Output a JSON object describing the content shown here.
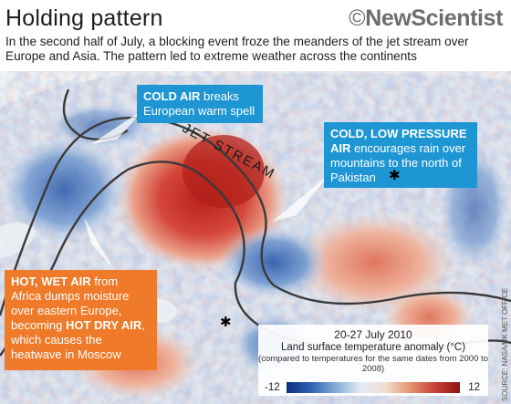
{
  "header": {
    "title": "Holding pattern",
    "logo": "NewScientist",
    "logo_symbol": "©",
    "subtitle": "In the second half of July, a blocking event froze the meanders of the jet stream over Europe and Asia. The pattern led to extreme weather across the continents"
  },
  "annotations": {
    "cold_air_bold": "COLD AIR",
    "cold_air_text": " breaks European warm spell",
    "low_pressure_bold": "COLD, LOW PRESSURE AIR",
    "low_pressure_text": " encourages rain over mountains to the north of Pakistan",
    "hot_wet_bold": "HOT, WET AIR",
    "hot_wet_text1": " from Africa dumps moisture over eastern Europe, becoming ",
    "hot_dry_bold": "HOT DRY AIR",
    "hot_dry_text": ", which causes the heatwave in Moscow",
    "star_symbol": "✱",
    "jet_stream_label": "JET STREAM"
  },
  "legend": {
    "date": "20-27 July 2010",
    "title": "Land surface temperature anomaly (°C)",
    "note": "(compared to temperatures for the same dates from 2000 to 2008)",
    "min": "-12",
    "max": "12"
  },
  "source": "SOURCE: NASA/UK MET OFFICE",
  "colors": {
    "cold_box": "#1e96d3",
    "hot_box": "#ee7a2a",
    "scale_cold": "#0c2f7e",
    "scale_hot": "#8e1413"
  }
}
